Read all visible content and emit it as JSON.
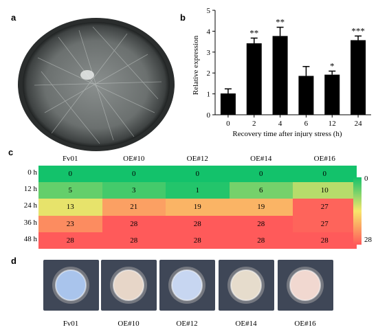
{
  "panels": {
    "a": "a",
    "b": "b",
    "c": "c",
    "d": "d"
  },
  "colors": {
    "bar": "#000000",
    "heat_low": "#13c26b",
    "heat_mid": "#f7e66b",
    "heat_high": "#ff5a5a"
  },
  "chart_data": [
    {
      "type": "bar",
      "categories": [
        "0",
        "2",
        "4",
        "6",
        "12",
        "24"
      ],
      "values": [
        1.02,
        3.42,
        3.77,
        1.86,
        1.92,
        3.57
      ],
      "errors": [
        0.22,
        0.25,
        0.42,
        0.45,
        0.17,
        0.2
      ],
      "significance": [
        "",
        "**",
        "**",
        "",
        "*",
        "***"
      ],
      "xlabel": "Recovery time after injury stress (h)",
      "ylabel": "Relative expression",
      "ylim": [
        0,
        5
      ],
      "yticks": [
        "0",
        "1",
        "2",
        "3",
        "4",
        "5"
      ]
    },
    {
      "type": "heatmap",
      "columns": [
        "Fv01",
        "OE#10",
        "OE#12",
        "OE#14",
        "OE#16"
      ],
      "rows": [
        "0 h",
        "12 h",
        "24 h",
        "36 h",
        "48 h"
      ],
      "values": [
        [
          0,
          0,
          0,
          0,
          0
        ],
        [
          5,
          3,
          1,
          6,
          10
        ],
        [
          13,
          21,
          19,
          19,
          27
        ],
        [
          23,
          28,
          28,
          28,
          27
        ],
        [
          28,
          28,
          28,
          28,
          28
        ]
      ],
      "scale": {
        "min": "0",
        "max": "28"
      }
    }
  ],
  "colonies": [
    "Fv01",
    "OE#10",
    "OE#12",
    "OE#14",
    "OE#16"
  ]
}
